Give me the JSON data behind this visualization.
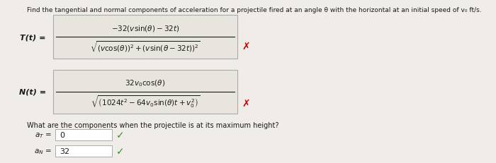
{
  "title_text": "Find the tangential and normal components of acceleration for a projectile fired at an angle θ with the horizontal at an initial speed of v₀ ft/s.",
  "T_label": "T(t) =",
  "N_label": "N(t) =",
  "T_num": "$-32(v\\sin(\\theta) - 32t)$",
  "T_den": "$\\sqrt{(v\\cos(\\theta))^2 + (v\\sin(\\theta - 32t))^2}$",
  "N_num": "$32v_0\\cos(\\theta)$",
  "N_den": "$\\sqrt{\\left(1024t^2 - 64v_0\\sin(\\theta)t + v_0^2\\right)}$",
  "question": "What are the components when the projectile is at its maximum height?",
  "aT_label": "$a_T$",
  "aT_value": "0",
  "aN_label": "$a_N$",
  "aN_value": "32",
  "bg_color": "#f0ede8",
  "box_bg": "#e8e4de",
  "ans_box_bg": "#ffffff",
  "border_color": "#aaaaaa",
  "text_color": "#1a1a1a",
  "red_x_color": "#cc0000",
  "check_color": "#3a8a30",
  "figsize": [
    7.0,
    2.32
  ],
  "dpi": 100
}
